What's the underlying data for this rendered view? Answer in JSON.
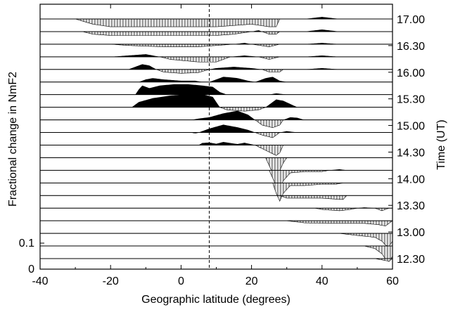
{
  "chart_data": {
    "type": "area",
    "x_range": [
      -40,
      60
    ],
    "x_ticks": [
      -40,
      -20,
      0,
      20,
      40,
      60
    ],
    "x_tick_labels": [
      "-40",
      "-20",
      "0",
      "20",
      "40",
      "60"
    ],
    "xlabel": "Geographic latitude (degrees)",
    "ylabel": "Fractional change in NmF2",
    "right_label": "Time (UT)",
    "y_scale_ticks": [
      0,
      0.1
    ],
    "y_scale_tick_labels": [
      "0",
      "0.1"
    ],
    "time_tick_labels": [
      "17.00",
      "16.30",
      "16.00",
      "15.30",
      "15.00",
      "14.30",
      "14.00",
      "13.30",
      "13.00",
      "12.30"
    ],
    "reference_latitude": 8,
    "grid": false,
    "legend": "none",
    "fill_colors": {
      "positive": "#000000",
      "negative": "#9a9a9a",
      "stripe": "#ffffff"
    },
    "series": [
      {
        "time": "17.00",
        "points": [
          [
            -40,
            0
          ],
          [
            -30,
            0
          ],
          [
            -25,
            -0.02
          ],
          [
            -20,
            -0.03
          ],
          [
            -10,
            -0.03
          ],
          [
            0,
            -0.03
          ],
          [
            10,
            -0.03
          ],
          [
            20,
            -0.02
          ],
          [
            25,
            -0.03
          ],
          [
            27,
            -0.03
          ],
          [
            28,
            0
          ],
          [
            35,
            0
          ],
          [
            40,
            0.008
          ],
          [
            45,
            0
          ],
          [
            60,
            0
          ]
        ]
      },
      {
        "time": "16.50",
        "points": [
          [
            -40,
            0
          ],
          [
            -28,
            0
          ],
          [
            -25,
            -0.01
          ],
          [
            -20,
            -0.015
          ],
          [
            -10,
            -0.015
          ],
          [
            0,
            -0.015
          ],
          [
            10,
            -0.015
          ],
          [
            15,
            -0.01
          ],
          [
            20,
            0
          ],
          [
            22,
            0.005
          ],
          [
            25,
            -0.01
          ],
          [
            27,
            -0.01
          ],
          [
            28,
            0
          ],
          [
            35,
            0
          ],
          [
            40,
            0.008
          ],
          [
            45,
            0
          ],
          [
            60,
            0
          ]
        ]
      },
      {
        "time": "16.30",
        "points": [
          [
            -40,
            0
          ],
          [
            -20,
            0
          ],
          [
            -15,
            -0.005
          ],
          [
            -5,
            -0.01
          ],
          [
            5,
            -0.01
          ],
          [
            10,
            -0.005
          ],
          [
            15,
            0
          ],
          [
            18,
            0.005
          ],
          [
            20,
            0
          ],
          [
            25,
            -0.01
          ],
          [
            28,
            0
          ],
          [
            35,
            0
          ],
          [
            40,
            0.005
          ],
          [
            45,
            0
          ],
          [
            60,
            0
          ]
        ]
      },
      {
        "time": "16.20",
        "points": [
          [
            -40,
            0
          ],
          [
            -20,
            0
          ],
          [
            -15,
            0.005
          ],
          [
            -10,
            0.01
          ],
          [
            -6,
            0
          ],
          [
            -3,
            -0.01
          ],
          [
            5,
            -0.02
          ],
          [
            10,
            -0.02
          ],
          [
            12,
            -0.01
          ],
          [
            14,
            0
          ],
          [
            18,
            0.005
          ],
          [
            22,
            0
          ],
          [
            25,
            -0.01
          ],
          [
            28,
            0
          ],
          [
            35,
            0
          ],
          [
            40,
            0.005
          ],
          [
            45,
            0
          ],
          [
            60,
            0
          ]
        ]
      },
      {
        "time": "16.00",
        "points": [
          [
            -40,
            0
          ],
          [
            -15,
            0
          ],
          [
            -13,
            0.01
          ],
          [
            -11,
            0.02
          ],
          [
            -9,
            0.015
          ],
          [
            -7,
            0
          ],
          [
            -5,
            -0.01
          ],
          [
            0,
            -0.015
          ],
          [
            5,
            -0.012
          ],
          [
            8,
            0
          ],
          [
            10,
            0.005
          ],
          [
            15,
            0.01
          ],
          [
            20,
            0.005
          ],
          [
            23,
            0
          ],
          [
            25,
            -0.01
          ],
          [
            28,
            -0.01
          ],
          [
            29,
            0
          ],
          [
            35,
            0
          ],
          [
            40,
            0.005
          ],
          [
            45,
            0
          ],
          [
            60,
            0
          ]
        ]
      },
      {
        "time": "15.50",
        "points": [
          [
            -40,
            0
          ],
          [
            -12,
            0
          ],
          [
            -10,
            0.01
          ],
          [
            -8,
            0.015
          ],
          [
            -5,
            0.01
          ],
          [
            0,
            0.005
          ],
          [
            4,
            0.005
          ],
          [
            6,
            0
          ],
          [
            8,
            0
          ],
          [
            10,
            0.01
          ],
          [
            12,
            0.02
          ],
          [
            14,
            0.018
          ],
          [
            16,
            0.015
          ],
          [
            19,
            0.005
          ],
          [
            21,
            0
          ],
          [
            24,
            0.015
          ],
          [
            26,
            0.02
          ],
          [
            28,
            0.005
          ],
          [
            30,
            0
          ],
          [
            60,
            0
          ]
        ]
      },
      {
        "time": "15.30",
        "points": [
          [
            -40,
            0
          ],
          [
            -13,
            0
          ],
          [
            -12,
            0.02
          ],
          [
            -11,
            0.035
          ],
          [
            -9,
            0.025
          ],
          [
            -6,
            0.035
          ],
          [
            -2,
            0.04
          ],
          [
            2,
            0.04
          ],
          [
            6,
            0.035
          ],
          [
            9,
            0.03
          ],
          [
            11,
            0.01
          ],
          [
            13,
            0
          ],
          [
            25,
            0
          ],
          [
            27,
            0.005
          ],
          [
            30,
            0
          ],
          [
            60,
            0
          ]
        ]
      },
      {
        "time": "15.10",
        "points": [
          [
            -40,
            0
          ],
          [
            -14,
            0
          ],
          [
            -12,
            0.02
          ],
          [
            -8,
            0.035
          ],
          [
            -3,
            0.045
          ],
          [
            2,
            0.05
          ],
          [
            6,
            0.05
          ],
          [
            9,
            0.04
          ],
          [
            11,
            0
          ],
          [
            13,
            -0.01
          ],
          [
            18,
            -0.015
          ],
          [
            22,
            -0.01
          ],
          [
            24,
            0
          ],
          [
            25,
            0.01
          ],
          [
            27,
            0.03
          ],
          [
            29,
            0.025
          ],
          [
            33,
            0
          ],
          [
            60,
            0
          ]
        ]
      },
      {
        "time": "15.00",
        "points": [
          [
            -40,
            0
          ],
          [
            3,
            0
          ],
          [
            5,
            0.005
          ],
          [
            8,
            0.01
          ],
          [
            12,
            0.025
          ],
          [
            16,
            0.035
          ],
          [
            19,
            0.02
          ],
          [
            21,
            0
          ],
          [
            23,
            -0.02
          ],
          [
            26,
            -0.03
          ],
          [
            28,
            -0.02
          ],
          [
            29,
            0
          ],
          [
            31,
            0.01
          ],
          [
            33,
            0.008
          ],
          [
            35,
            0
          ],
          [
            60,
            0
          ]
        ]
      },
      {
        "time": "14.50",
        "points": [
          [
            -40,
            0
          ],
          [
            3,
            0
          ],
          [
            4,
            -0.003
          ],
          [
            5,
            0
          ],
          [
            6,
            0.005
          ],
          [
            8,
            0.015
          ],
          [
            12,
            0.03
          ],
          [
            16,
            0.02
          ],
          [
            19,
            0.01
          ],
          [
            21,
            0
          ],
          [
            23,
            -0.01
          ],
          [
            26,
            -0.02
          ],
          [
            28,
            0
          ],
          [
            30,
            0.005
          ],
          [
            33,
            0
          ],
          [
            60,
            0
          ]
        ]
      },
      {
        "time": "14.30",
        "points": [
          [
            -40,
            0
          ],
          [
            5,
            0
          ],
          [
            6,
            0.008
          ],
          [
            8,
            0.01
          ],
          [
            10,
            0.005
          ],
          [
            12,
            0.012
          ],
          [
            14,
            0.008
          ],
          [
            16,
            0.004
          ],
          [
            18,
            0.009
          ],
          [
            21,
            0
          ],
          [
            24,
            -0.02
          ],
          [
            27,
            -0.04
          ],
          [
            28,
            -0.03
          ],
          [
            29,
            0
          ],
          [
            60,
            0
          ]
        ]
      },
      {
        "time": "14.20",
        "points": [
          [
            -40,
            0
          ],
          [
            24,
            0
          ],
          [
            25,
            -0.03
          ],
          [
            26,
            -0.06
          ],
          [
            27,
            -0.07
          ],
          [
            28,
            -0.05
          ],
          [
            29,
            -0.02
          ],
          [
            30,
            0
          ],
          [
            60,
            0
          ]
        ]
      },
      {
        "time": "14.10",
        "points": [
          [
            -40,
            0
          ],
          [
            25,
            0
          ],
          [
            26,
            -0.03
          ],
          [
            27,
            -0.06
          ],
          [
            28,
            -0.07
          ],
          [
            29,
            -0.04
          ],
          [
            31,
            -0.01
          ],
          [
            35,
            -0.005
          ],
          [
            40,
            -0.005
          ],
          [
            42,
            0
          ],
          [
            45,
            0.004
          ],
          [
            47,
            0
          ],
          [
            60,
            0
          ]
        ]
      },
      {
        "time": "14.00",
        "points": [
          [
            -40,
            0
          ],
          [
            26,
            0
          ],
          [
            27,
            -0.04
          ],
          [
            28,
            -0.07
          ],
          [
            29,
            -0.04
          ],
          [
            31,
            -0.01
          ],
          [
            35,
            -0.01
          ],
          [
            40,
            -0.005
          ],
          [
            44,
            -0.005
          ],
          [
            46,
            0
          ],
          [
            60,
            0
          ]
        ]
      },
      {
        "time": "13.50",
        "points": [
          [
            -40,
            0
          ],
          [
            28,
            0
          ],
          [
            30,
            -0.01
          ],
          [
            35,
            -0.01
          ],
          [
            40,
            -0.01
          ],
          [
            45,
            -0.015
          ],
          [
            46,
            -0.015
          ],
          [
            47,
            0
          ],
          [
            60,
            0
          ]
        ]
      },
      {
        "time": "13.30",
        "points": [
          [
            -40,
            0
          ],
          [
            38,
            0
          ],
          [
            40,
            -0.005
          ],
          [
            45,
            -0.01
          ],
          [
            48,
            -0.005
          ],
          [
            50,
            0
          ],
          [
            52,
            0.003
          ],
          [
            55,
            0
          ],
          [
            57,
            -0.01
          ],
          [
            58,
            -0.005
          ],
          [
            59,
            0
          ],
          [
            60,
            0
          ]
        ]
      },
      {
        "time": "13.15",
        "points": [
          [
            -40,
            0
          ],
          [
            30,
            0
          ],
          [
            35,
            -0.008
          ],
          [
            42,
            -0.01
          ],
          [
            48,
            -0.01
          ],
          [
            52,
            -0.01
          ],
          [
            56,
            -0.015
          ],
          [
            58,
            -0.02
          ],
          [
            59,
            -0.01
          ],
          [
            60,
            0
          ]
        ]
      },
      {
        "time": "13.00",
        "points": [
          [
            -40,
            0
          ],
          [
            45,
            0
          ],
          [
            50,
            -0.008
          ],
          [
            55,
            -0.015
          ],
          [
            57,
            -0.03
          ],
          [
            58,
            -0.045
          ],
          [
            59,
            -0.05
          ],
          [
            60,
            -0.03
          ]
        ]
      },
      {
        "time": "12.45",
        "points": [
          [
            -40,
            0
          ],
          [
            52,
            0
          ],
          [
            55,
            -0.01
          ],
          [
            57,
            -0.03
          ],
          [
            58,
            -0.05
          ],
          [
            59,
            -0.06
          ],
          [
            60,
            -0.04
          ]
        ]
      },
      {
        "time": "12.30",
        "points": [
          [
            -40,
            0
          ],
          [
            55,
            0
          ],
          [
            57,
            -0.005
          ],
          [
            59,
            -0.01
          ],
          [
            60,
            0
          ]
        ]
      }
    ]
  }
}
